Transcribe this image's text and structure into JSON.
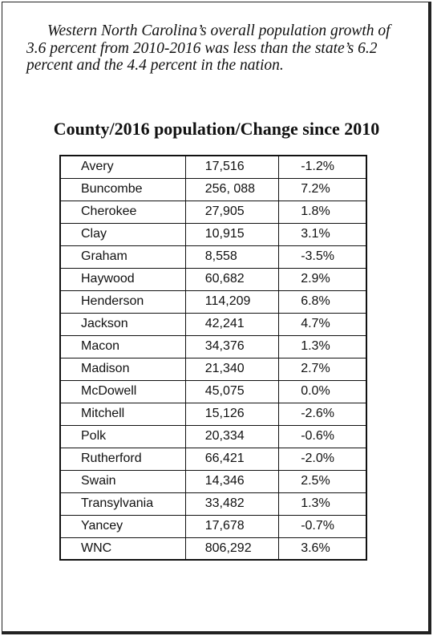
{
  "intro": "Western North Carolina’s overall population growth of 3.6 percent from 2010-2016 was less than the state’s 6.2 percent and the 4.4 percent in the nation.",
  "heading": "County/2016 population/Change since 2010",
  "rows": [
    {
      "county": "Avery",
      "population": "17,516",
      "change": "-1.2%"
    },
    {
      "county": "Buncombe",
      "population": "256, 088",
      "change": "7.2%"
    },
    {
      "county": "Cherokee",
      "population": "27,905",
      "change": "1.8%"
    },
    {
      "county": "Clay",
      "population": "10,915",
      "change": "3.1%"
    },
    {
      "county": "Graham",
      "population": "8,558",
      "change": "-3.5%"
    },
    {
      "county": "Haywood",
      "population": "60,682",
      "change": "2.9%"
    },
    {
      "county": "Henderson",
      "population": "114,209",
      "change": "6.8%"
    },
    {
      "county": "Jackson",
      "population": "42,241",
      "change": "4.7%"
    },
    {
      "county": "Macon",
      "population": "34,376",
      "change": "1.3%"
    },
    {
      "county": "Madison",
      "population": "21,340",
      "change": "2.7%"
    },
    {
      "county": "McDowell",
      "population": "45,075",
      "change": "0.0%"
    },
    {
      "county": "Mitchell",
      "population": "15,126",
      "change": "-2.6%"
    },
    {
      "county": "Polk",
      "population": "20,334",
      "change": "-0.6%"
    },
    {
      "county": "Rutherford",
      "population": "66,421",
      "change": "-2.0%"
    },
    {
      "county": "Swain",
      "population": "14,346",
      "change": "2.5%"
    },
    {
      "county": "Transylvania",
      "population": "33,482",
      "change": "1.3%"
    },
    {
      "county": "Yancey",
      "population": "17,678",
      "change": "-0.7%"
    },
    {
      "county": "WNC",
      "population": "806,292",
      "change": "3.6%"
    }
  ]
}
